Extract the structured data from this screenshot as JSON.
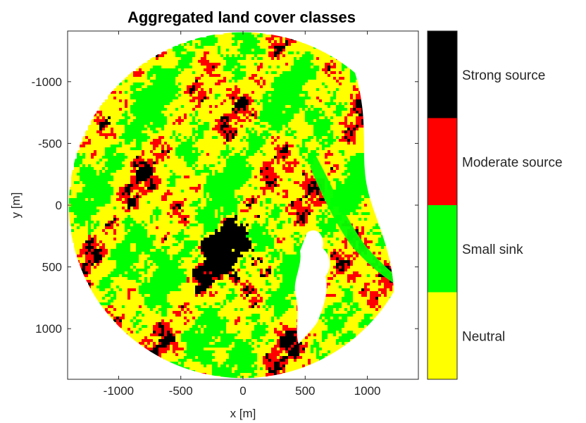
{
  "chart_data": {
    "type": "heatmap",
    "title": "Aggregated land cover classes",
    "xlabel": "x [m]",
    "ylabel": "y [m]",
    "xlim": [
      -1410,
      1410
    ],
    "ylim": [
      -1410,
      1410
    ],
    "y_direction": "reversed",
    "x_ticks": [
      -1000,
      -500,
      0,
      500,
      1000
    ],
    "y_ticks": [
      -1000,
      -500,
      0,
      500,
      1000
    ],
    "x_tick_labels": [
      "-1000",
      "-500",
      "0",
      "500",
      "1000"
    ],
    "y_tick_labels": [
      "-1000",
      "-500",
      "0",
      "500",
      "1000"
    ],
    "grid": false,
    "footprint_radius_m": 1400,
    "classes": [
      {
        "name": "Strong source",
        "color": "#000000"
      },
      {
        "name": "Moderate source",
        "color": "#ff0000"
      },
      {
        "name": "Small sink",
        "color": "#00ff00"
      },
      {
        "name": "Neutral",
        "color": "#ffff00"
      }
    ],
    "colorbar_position": "right"
  }
}
